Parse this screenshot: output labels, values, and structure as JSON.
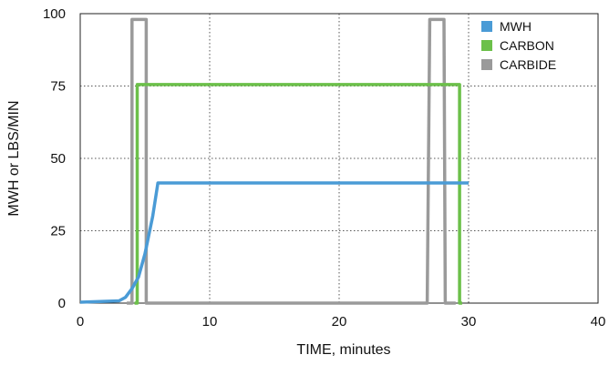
{
  "chart_data": {
    "type": "line",
    "title": "",
    "xlabel": "TIME, minutes",
    "ylabel": "MWH or LBS/MIN",
    "xlim": [
      0,
      40
    ],
    "ylim": [
      0,
      100
    ],
    "xticks": [
      0,
      10,
      20,
      30,
      40
    ],
    "yticks": [
      0,
      25,
      50,
      75,
      100
    ],
    "grid": {
      "x": "dotted",
      "y": "dotted"
    },
    "legend_position": "top-right",
    "series": [
      {
        "name": "MWH",
        "color": "#4a9bd6",
        "points": [
          [
            0,
            0.3
          ],
          [
            3,
            0.8
          ],
          [
            3.5,
            2
          ],
          [
            4,
            5
          ],
          [
            4.5,
            9
          ],
          [
            5,
            17
          ],
          [
            5.6,
            30
          ],
          [
            6,
            41.5
          ],
          [
            30,
            41.5
          ]
        ]
      },
      {
        "name": "CARBON",
        "color": "#6cc04a",
        "points": [
          [
            4.2,
            0
          ],
          [
            4.4,
            0
          ],
          [
            4.4,
            75.5
          ],
          [
            29.3,
            75.5
          ],
          [
            29.3,
            0
          ],
          [
            29.5,
            0
          ]
        ]
      },
      {
        "name": "CARBIDE",
        "color": "#9a9a9a",
        "points": [
          [
            3.6,
            0
          ],
          [
            4.0,
            0
          ],
          [
            4.0,
            98
          ],
          [
            5.1,
            98
          ],
          [
            5.1,
            0
          ],
          [
            26.8,
            0
          ],
          [
            27.0,
            98
          ],
          [
            28.1,
            98
          ],
          [
            28.2,
            0
          ],
          [
            29.0,
            0
          ]
        ]
      }
    ]
  }
}
